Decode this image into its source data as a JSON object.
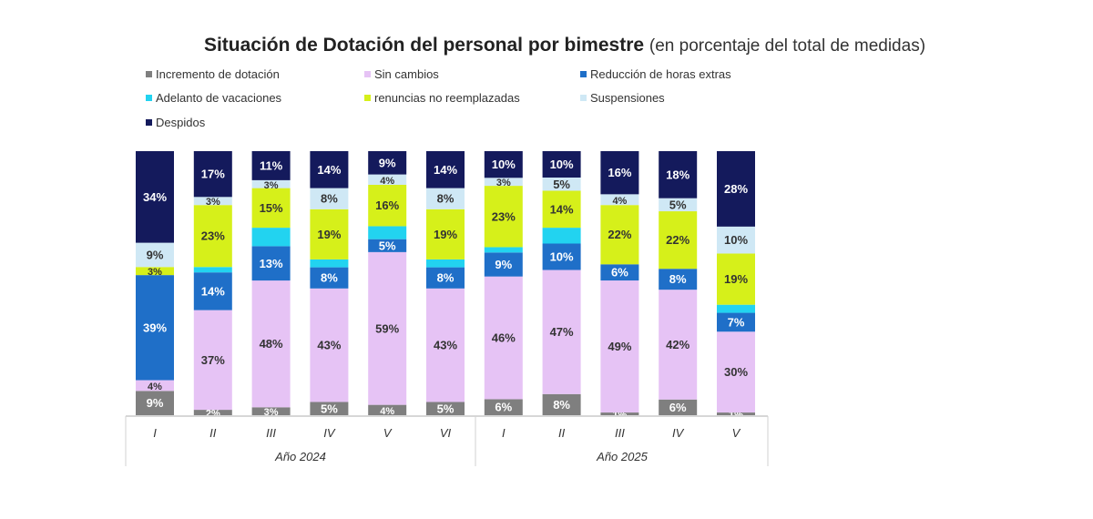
{
  "title": {
    "main": "Situación de Dotación del personal por bimestre",
    "sub": "(en porcentaje del total de medidas)"
  },
  "chart_data": {
    "type": "bar",
    "stacked": true,
    "title": "Situación de Dotación del personal por bimestre (en porcentaje del total de medidas)",
    "categories": [
      "I",
      "II",
      "III",
      "IV",
      "V",
      "VI",
      "I",
      "II",
      "III",
      "IV",
      "V"
    ],
    "groups": [
      {
        "label": "Año 2024",
        "categories": [
          "I",
          "II",
          "III",
          "IV",
          "V",
          "VI"
        ]
      },
      {
        "label": "Año 2025",
        "categories": [
          "I",
          "II",
          "III",
          "IV",
          "V"
        ]
      }
    ],
    "ylim": [
      0,
      100
    ],
    "legend_position": "top",
    "series": [
      {
        "name": "Incremento de dotación",
        "color": "#7f7f7f",
        "label_color": "#ffffff",
        "values": [
          9,
          2,
          3,
          5,
          4,
          5,
          6,
          8,
          1,
          6,
          1
        ],
        "labels": [
          "9%",
          "2%",
          "3%",
          "5%",
          "4%",
          "5%",
          "6%",
          "8%",
          "1%",
          "6%",
          "1%"
        ]
      },
      {
        "name": "Sin cambios",
        "color": "#e6c3f5",
        "label_color": "#333333",
        "values": [
          4,
          37,
          48,
          43,
          59,
          43,
          46,
          47,
          49,
          42,
          30
        ],
        "labels": [
          "4%",
          "37%",
          "48%",
          "43%",
          "59%",
          "43%",
          "46%",
          "47%",
          "49%",
          "42%",
          "30%"
        ]
      },
      {
        "name": "Reducción de horas extras",
        "color": "#1f6fc8",
        "label_color": "#ffffff",
        "values": [
          39,
          14,
          13,
          8,
          5,
          8,
          9,
          10,
          6,
          8,
          7
        ],
        "labels": [
          "39%",
          "14%",
          "13%",
          "8%",
          "5%",
          "8%",
          "9%",
          "10%",
          "6%",
          "8%",
          "7%"
        ]
      },
      {
        "name": "Adelanto de vacaciones",
        "color": "#22d3f0",
        "label_color": "#333333",
        "values": [
          0,
          2,
          7,
          3,
          5,
          3,
          2,
          6,
          0,
          0,
          3
        ],
        "labels": [
          "",
          "",
          "",
          "",
          "",
          "",
          "",
          "",
          "",
          "",
          ""
        ]
      },
      {
        "name": "renuncias no reemplazadas",
        "color": "#d6f01a",
        "label_color": "#333333",
        "values": [
          3,
          23,
          15,
          19,
          16,
          19,
          23,
          14,
          22,
          22,
          19
        ],
        "labels": [
          "3%",
          "23%",
          "15%",
          "19%",
          "16%",
          "19%",
          "23%",
          "14%",
          "22%",
          "22%",
          "19%"
        ]
      },
      {
        "name": "Suspensiones",
        "color": "#cfe8f5",
        "label_color": "#333333",
        "values": [
          9,
          3,
          3,
          8,
          4,
          8,
          3,
          5,
          4,
          5,
          10
        ],
        "labels": [
          "9%",
          "3%",
          "3%",
          "8%",
          "4%",
          "8%",
          "3%",
          "5%",
          "4%",
          "5%",
          "10%"
        ]
      },
      {
        "name": "Despidos",
        "color": "#141a5c",
        "label_color": "#ffffff",
        "values": [
          34,
          17,
          11,
          14,
          9,
          14,
          10,
          10,
          16,
          18,
          28
        ],
        "labels": [
          "34%",
          "17%",
          "11%",
          "14%",
          "9%",
          "14%",
          "10%",
          "10%",
          "16%",
          "18%",
          "28%"
        ]
      }
    ]
  }
}
